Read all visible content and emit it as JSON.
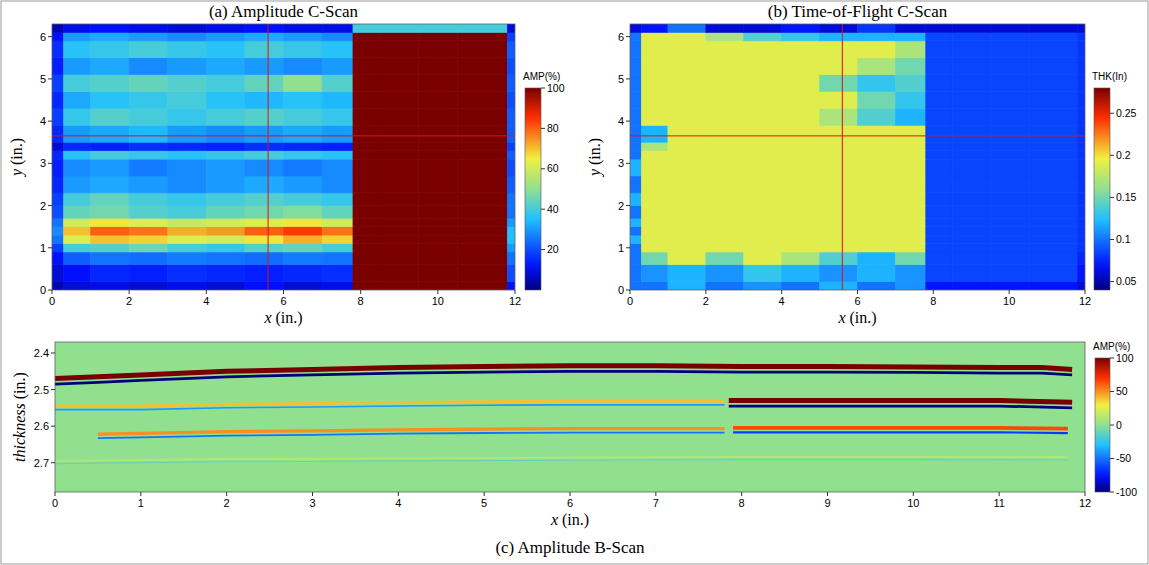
{
  "chart_data": [
    {
      "type": "heatmap",
      "title": "(a) Amplitude C-Scan",
      "x_label": "x (in.)",
      "y_label": "y (in.)",
      "xlim": [
        0,
        12
      ],
      "ylim": [
        0,
        6.3
      ],
      "xticks": [
        0,
        2,
        4,
        6,
        8,
        10,
        12
      ],
      "yticks": [
        0,
        1,
        2,
        3,
        4,
        5,
        6
      ],
      "x_edges": [
        0,
        0.3,
        1,
        2,
        3,
        4,
        5,
        6,
        7,
        7.8,
        8.5,
        9.5,
        10.5,
        11.8,
        12
      ],
      "y_edges": [
        0,
        0.2,
        0.6,
        0.9,
        1.1,
        1.3,
        1.5,
        1.7,
        2,
        2.3,
        2.7,
        3.1,
        3.3,
        3.5,
        3.9,
        4.3,
        4.7,
        5.1,
        5.5,
        5.9,
        6.1,
        6.3
      ],
      "values": [
        [
          5,
          8,
          10,
          8,
          10,
          8,
          12,
          8,
          10,
          100,
          100,
          100,
          100,
          12
        ],
        [
          8,
          12,
          15,
          14,
          16,
          15,
          14,
          15,
          16,
          100,
          100,
          100,
          100,
          20
        ],
        [
          12,
          22,
          25,
          24,
          26,
          25,
          24,
          26,
          25,
          100,
          100,
          100,
          100,
          25
        ],
        [
          18,
          40,
          42,
          45,
          40,
          38,
          42,
          44,
          40,
          100,
          100,
          100,
          100,
          30
        ],
        [
          25,
          62,
          70,
          68,
          62,
          60,
          66,
          72,
          68,
          100,
          100,
          100,
          100,
          35
        ],
        [
          28,
          70,
          80,
          78,
          72,
          74,
          80,
          84,
          78,
          100,
          100,
          100,
          100,
          35
        ],
        [
          25,
          60,
          66,
          62,
          58,
          60,
          62,
          66,
          60,
          100,
          100,
          100,
          100,
          30
        ],
        [
          20,
          44,
          46,
          42,
          40,
          44,
          46,
          48,
          44,
          100,
          100,
          100,
          100,
          25
        ],
        [
          18,
          40,
          44,
          40,
          38,
          40,
          42,
          40,
          38,
          100,
          100,
          100,
          100,
          25
        ],
        [
          15,
          30,
          32,
          30,
          28,
          30,
          32,
          30,
          28,
          100,
          100,
          100,
          100,
          22
        ],
        [
          14,
          28,
          30,
          26,
          28,
          30,
          28,
          26,
          28,
          100,
          100,
          100,
          100,
          20
        ],
        [
          15,
          36,
          40,
          38,
          36,
          38,
          40,
          38,
          36,
          100,
          100,
          100,
          100,
          22
        ],
        [
          8,
          15,
          14,
          16,
          15,
          14,
          16,
          15,
          14,
          100,
          100,
          100,
          100,
          18
        ],
        [
          15,
          30,
          32,
          34,
          30,
          28,
          30,
          32,
          30,
          100,
          100,
          100,
          100,
          22
        ],
        [
          18,
          38,
          42,
          40,
          38,
          40,
          42,
          40,
          38,
          100,
          100,
          100,
          100,
          22
        ],
        [
          15,
          32,
          36,
          38,
          40,
          36,
          34,
          36,
          34,
          100,
          100,
          100,
          100,
          20
        ],
        [
          18,
          40,
          42,
          44,
          42,
          40,
          44,
          50,
          42,
          100,
          100,
          100,
          100,
          22
        ],
        [
          14,
          30,
          32,
          28,
          30,
          32,
          30,
          28,
          30,
          100,
          100,
          100,
          100,
          20
        ],
        [
          16,
          36,
          38,
          40,
          38,
          36,
          40,
          38,
          36,
          100,
          100,
          100,
          100,
          22
        ],
        [
          12,
          30,
          32,
          30,
          28,
          30,
          32,
          30,
          28,
          100,
          100,
          100,
          100,
          18
        ],
        [
          5,
          10,
          12,
          10,
          8,
          10,
          12,
          10,
          10,
          40,
          40,
          40,
          40,
          8
        ]
      ],
      "colorbar_label": "AMP(%)",
      "colorbar_lim": [
        0,
        100
      ],
      "colorbar_ticks": [
        20,
        40,
        60,
        80,
        100
      ],
      "cursor_x": 5.6,
      "cursor_y": 3.65
    },
    {
      "type": "heatmap",
      "title": "(b) Time-of-Flight C-Scan",
      "x_label": "x (in.)",
      "y_label": "y (in.)",
      "xlim": [
        0,
        12
      ],
      "ylim": [
        0,
        6.3
      ],
      "xticks": [
        0,
        2,
        4,
        6,
        8,
        10,
        12
      ],
      "yticks": [
        0,
        1,
        2,
        3,
        4,
        5,
        6
      ],
      "x_edges": [
        0,
        0.3,
        1,
        2,
        3,
        4,
        5,
        6,
        7,
        7.8,
        8.5,
        9.5,
        10.5,
        11.8,
        12
      ],
      "y_edges": [
        0,
        0.2,
        0.6,
        0.9,
        1.1,
        1.3,
        1.5,
        1.7,
        2,
        2.3,
        2.7,
        3.1,
        3.3,
        3.5,
        3.9,
        4.3,
        4.7,
        5.1,
        5.5,
        5.9,
        6.1,
        6.3
      ],
      "values": [
        [
          0.1,
          0.1,
          0.12,
          0.1,
          0.11,
          0.1,
          0.12,
          0.1,
          0.11,
          0.07,
          0.07,
          0.07,
          0.07,
          0.06
        ],
        [
          0.1,
          0.11,
          0.12,
          0.11,
          0.13,
          0.12,
          0.11,
          0.12,
          0.11,
          0.085,
          0.085,
          0.085,
          0.085,
          0.07
        ],
        [
          0.1,
          0.15,
          0.19,
          0.15,
          0.19,
          0.17,
          0.14,
          0.12,
          0.15,
          0.085,
          0.085,
          0.085,
          0.085,
          0.075
        ],
        [
          0.1,
          0.19,
          0.19,
          0.19,
          0.19,
          0.19,
          0.19,
          0.19,
          0.19,
          0.085,
          0.085,
          0.085,
          0.085,
          0.08
        ],
        [
          0.12,
          0.19,
          0.19,
          0.19,
          0.19,
          0.19,
          0.19,
          0.19,
          0.19,
          0.085,
          0.085,
          0.085,
          0.085,
          0.08
        ],
        [
          0.1,
          0.19,
          0.19,
          0.19,
          0.19,
          0.19,
          0.19,
          0.19,
          0.19,
          0.085,
          0.085,
          0.085,
          0.085,
          0.08
        ],
        [
          0.12,
          0.19,
          0.19,
          0.19,
          0.19,
          0.19,
          0.19,
          0.19,
          0.19,
          0.085,
          0.085,
          0.085,
          0.085,
          0.08
        ],
        [
          0.1,
          0.19,
          0.19,
          0.19,
          0.19,
          0.19,
          0.19,
          0.19,
          0.19,
          0.085,
          0.085,
          0.085,
          0.085,
          0.08
        ],
        [
          0.12,
          0.19,
          0.19,
          0.19,
          0.19,
          0.19,
          0.19,
          0.19,
          0.19,
          0.085,
          0.085,
          0.085,
          0.085,
          0.08
        ],
        [
          0.1,
          0.19,
          0.19,
          0.19,
          0.19,
          0.19,
          0.19,
          0.19,
          0.19,
          0.085,
          0.085,
          0.085,
          0.085,
          0.08
        ],
        [
          0.12,
          0.19,
          0.19,
          0.19,
          0.19,
          0.19,
          0.19,
          0.19,
          0.19,
          0.085,
          0.085,
          0.085,
          0.085,
          0.08
        ],
        [
          0.1,
          0.19,
          0.19,
          0.19,
          0.19,
          0.19,
          0.19,
          0.19,
          0.19,
          0.085,
          0.085,
          0.085,
          0.085,
          0.08
        ],
        [
          0.1,
          0.17,
          0.19,
          0.19,
          0.19,
          0.19,
          0.19,
          0.19,
          0.19,
          0.085,
          0.085,
          0.085,
          0.085,
          0.08
        ],
        [
          0.1,
          0.12,
          0.19,
          0.19,
          0.19,
          0.19,
          0.19,
          0.19,
          0.19,
          0.085,
          0.085,
          0.085,
          0.085,
          0.08
        ],
        [
          0.1,
          0.19,
          0.19,
          0.19,
          0.19,
          0.19,
          0.17,
          0.14,
          0.12,
          0.085,
          0.085,
          0.085,
          0.085,
          0.08
        ],
        [
          0.1,
          0.19,
          0.19,
          0.19,
          0.19,
          0.19,
          0.19,
          0.15,
          0.13,
          0.085,
          0.085,
          0.085,
          0.085,
          0.08
        ],
        [
          0.1,
          0.19,
          0.19,
          0.19,
          0.19,
          0.19,
          0.15,
          0.13,
          0.14,
          0.085,
          0.085,
          0.085,
          0.085,
          0.08
        ],
        [
          0.1,
          0.19,
          0.19,
          0.19,
          0.19,
          0.19,
          0.19,
          0.17,
          0.15,
          0.085,
          0.085,
          0.085,
          0.085,
          0.08
        ],
        [
          0.1,
          0.19,
          0.19,
          0.19,
          0.19,
          0.19,
          0.19,
          0.19,
          0.17,
          0.085,
          0.085,
          0.085,
          0.085,
          0.08
        ],
        [
          0.1,
          0.19,
          0.19,
          0.17,
          0.14,
          0.13,
          0.12,
          0.12,
          0.12,
          0.085,
          0.085,
          0.085,
          0.085,
          0.08
        ],
        [
          0.06,
          0.07,
          0.1,
          0.06,
          0.06,
          0.07,
          0.06,
          0.08,
          0.06,
          0.06,
          0.06,
          0.06,
          0.06,
          0.06
        ]
      ],
      "colorbar_label": "THK(In)",
      "colorbar_lim": [
        0.04,
        0.28
      ],
      "colorbar_ticks": [
        0.05,
        0.1,
        0.15,
        0.2,
        0.25
      ],
      "cursor_x": 5.6,
      "cursor_y": 3.65
    },
    {
      "type": "line",
      "title": "(c) Amplitude B-Scan",
      "x_label": "x (in.)",
      "y_label": "thickness (in.)",
      "xlim": [
        0,
        12
      ],
      "ylim": [
        2.78,
        2.37
      ],
      "xticks": [
        0,
        1,
        2,
        3,
        4,
        5,
        6,
        7,
        8,
        9,
        10,
        11,
        12
      ],
      "yticks": [
        2.4,
        2.5,
        2.6,
        2.7
      ],
      "series": [
        {
          "x": [
            0,
            0.5,
            1,
            2,
            3,
            4,
            5,
            6,
            7,
            8,
            9,
            10,
            11,
            11.5,
            11.85
          ],
          "values": [
            2.47,
            2.465,
            2.46,
            2.45,
            2.445,
            2.44,
            2.437,
            2.435,
            2.435,
            2.437,
            2.437,
            2.438,
            2.44,
            2.44,
            2.445
          ],
          "amplitude": 100
        },
        {
          "x": [
            0,
            1,
            2,
            3,
            4,
            5,
            6,
            7,
            7.8
          ],
          "values": [
            2.545,
            2.545,
            2.54,
            2.538,
            2.535,
            2.533,
            2.532,
            2.532,
            2.532
          ],
          "amplitude": 40
        },
        {
          "x": [
            7.85,
            9,
            10,
            11,
            11.85
          ],
          "values": [
            2.53,
            2.53,
            2.53,
            2.53,
            2.535
          ],
          "amplitude": 100
        },
        {
          "x": [
            0.5,
            1,
            2,
            3,
            4,
            5,
            6,
            7,
            7.8
          ],
          "values": [
            2.622,
            2.62,
            2.615,
            2.613,
            2.61,
            2.608,
            2.607,
            2.607,
            2.607
          ],
          "amplitude": 50
        },
        {
          "x": [
            7.9,
            9,
            10,
            11,
            11.8
          ],
          "values": [
            2.605,
            2.605,
            2.605,
            2.605,
            2.607
          ],
          "amplitude": 65
        },
        {
          "x": [
            0,
            2,
            4,
            6,
            8,
            10,
            11.8
          ],
          "values": [
            2.695,
            2.69,
            2.688,
            2.686,
            2.684,
            2.684,
            2.685
          ],
          "amplitude": 12
        }
      ],
      "colorbar_label": "AMP(%)",
      "colorbar_lim": [
        -100,
        100
      ],
      "colorbar_ticks": [
        -100,
        -50,
        0,
        50,
        100
      ]
    }
  ]
}
